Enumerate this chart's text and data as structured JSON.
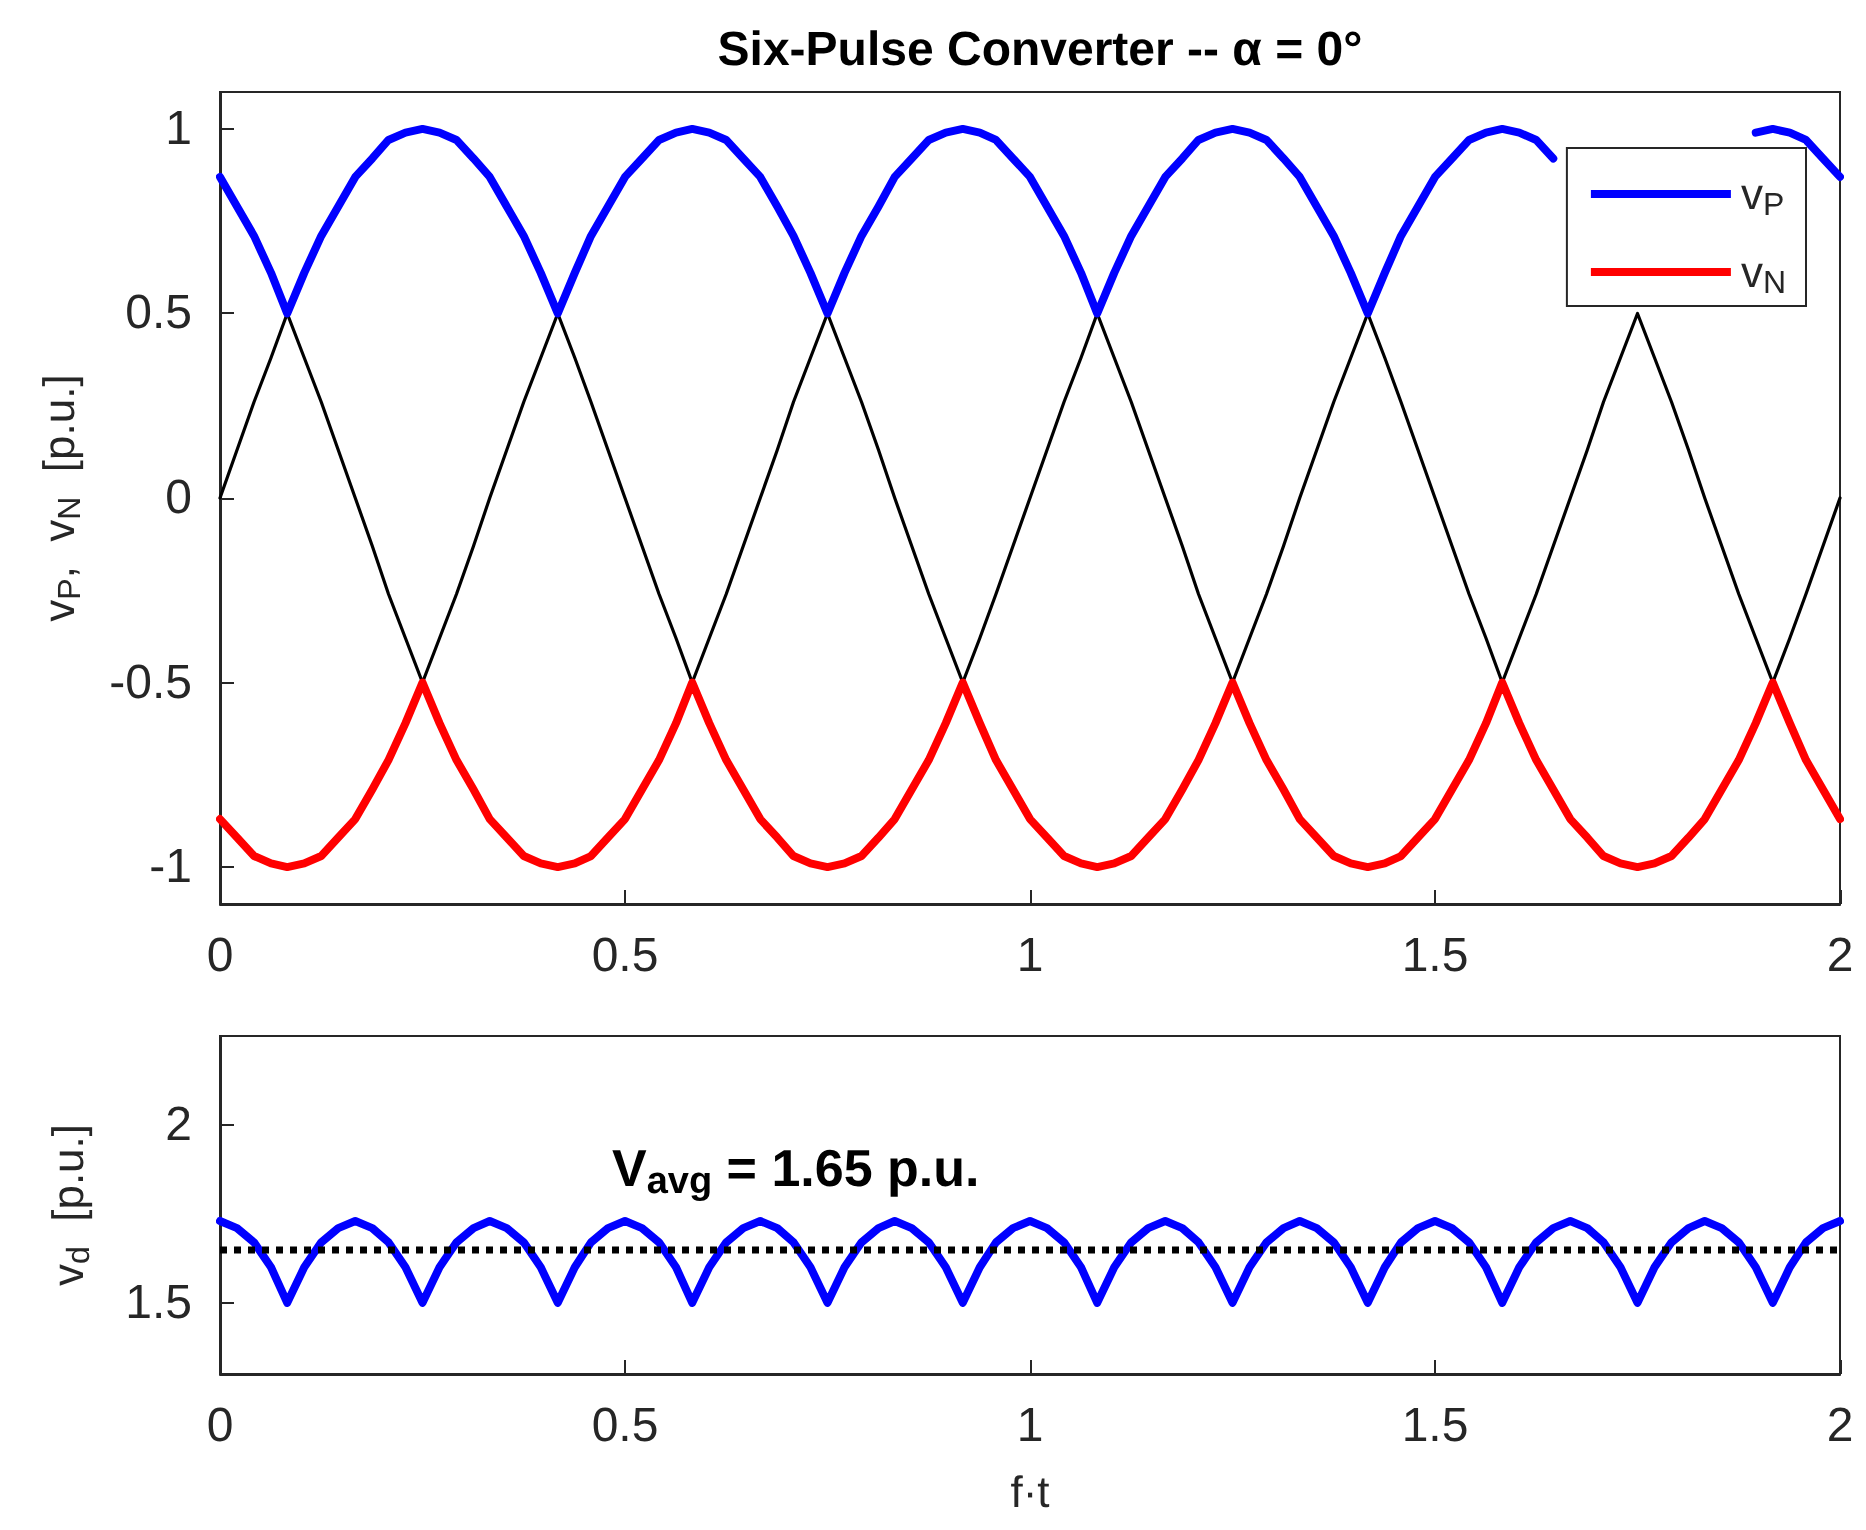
{
  "chart_data": [
    {
      "type": "line",
      "title": "Six-Pulse Converter -- α = 0°",
      "ylabel": "v$_{P}$,  v$_{N}$  [p.u.]",
      "legend": "top right",
      "grid": false,
      "line_style": "solid",
      "marker": "none",
      "x": [
        0,
        0.021,
        0.042,
        0.063,
        0.083,
        0.104,
        0.125,
        0.146,
        0.167,
        0.188,
        0.208,
        0.229,
        0.25,
        0.271,
        0.292,
        0.313,
        0.333,
        0.354,
        0.375,
        0.396,
        0.417,
        0.438,
        0.458,
        0.479,
        0.5,
        0.521,
        0.542,
        0.563,
        0.583,
        0.604,
        0.625,
        0.646,
        0.667,
        0.688,
        0.708,
        0.729,
        0.75,
        0.771,
        0.792,
        0.813,
        0.833,
        0.854,
        0.875,
        0.896,
        0.917,
        0.938,
        0.958,
        0.979,
        1,
        1.021,
        1.042,
        1.063,
        1.083,
        1.104,
        1.125,
        1.146,
        1.167,
        1.188,
        1.208,
        1.229,
        1.25,
        1.271,
        1.292,
        1.313,
        1.333,
        1.354,
        1.375,
        1.396,
        1.417,
        1.438,
        1.458,
        1.479,
        1.5,
        1.521,
        1.542,
        1.563,
        1.583,
        1.604,
        1.625,
        1.646,
        1.667,
        1.688,
        1.708,
        1.729,
        1.75,
        1.771,
        1.792,
        1.813,
        1.833,
        1.854,
        1.875,
        1.896,
        1.917,
        1.938,
        1.958,
        1.979,
        2
      ],
      "xlim": [
        0,
        2
      ],
      "xticks": [
        0,
        0.5,
        1,
        1.5,
        2
      ],
      "ylim": [
        -1.1,
        1.1
      ],
      "yticks": [
        -1,
        -0.5,
        0,
        0.5,
        1
      ],
      "series": [
        {
          "color": "#000000",
          "values": [
            0,
            0.13,
            0.26,
            0.38,
            0.5,
            0.38,
            0.26,
            0.13,
            0,
            -0.13,
            -0.26,
            -0.38,
            -0.5,
            -0.38,
            -0.26,
            -0.13,
            0,
            0.13,
            0.26,
            0.38,
            0.5,
            0.38,
            0.26,
            0.13,
            0,
            -0.13,
            -0.26,
            -0.38,
            -0.5,
            -0.38,
            -0.26,
            -0.13,
            0,
            0.13,
            0.26,
            0.38,
            0.5,
            0.38,
            0.26,
            0.13,
            0,
            -0.13,
            -0.26,
            -0.38,
            -0.5,
            -0.38,
            -0.26,
            -0.13,
            0,
            0.13,
            0.26,
            0.38,
            0.5,
            0.38,
            0.26,
            0.13,
            0,
            -0.13,
            -0.26,
            -0.38,
            -0.5,
            -0.38,
            -0.26,
            -0.13,
            0,
            0.13,
            0.26,
            0.38,
            0.5,
            0.38,
            0.26,
            0.13,
            0,
            -0.13,
            -0.26,
            -0.38,
            -0.5,
            -0.38,
            -0.26,
            -0.13,
            0,
            0.13,
            0.26,
            0.38,
            0.5,
            0.38,
            0.26,
            0.13,
            0,
            -0.13,
            -0.26,
            -0.38,
            -0.5,
            -0.38,
            -0.26,
            -0.13,
            0
          ]
        },
        {
          "name": "v$_{P}$",
          "color": "#0000ff",
          "values": [
            0.87,
            0.79,
            0.71,
            0.61,
            0.5,
            0.61,
            0.71,
            0.79,
            0.87,
            0.92,
            0.97,
            0.99,
            1,
            0.99,
            0.97,
            0.92,
            0.87,
            0.79,
            0.71,
            0.61,
            0.5,
            0.61,
            0.71,
            0.79,
            0.87,
            0.92,
            0.97,
            0.99,
            1,
            0.99,
            0.97,
            0.92,
            0.87,
            0.79,
            0.71,
            0.61,
            0.5,
            0.61,
            0.71,
            0.79,
            0.87,
            0.92,
            0.97,
            0.99,
            1,
            0.99,
            0.97,
            0.92,
            0.87,
            0.79,
            0.71,
            0.61,
            0.5,
            0.61,
            0.71,
            0.79,
            0.87,
            0.92,
            0.97,
            0.99,
            1,
            0.99,
            0.97,
            0.92,
            0.87,
            0.79,
            0.71,
            0.61,
            0.5,
            0.61,
            0.71,
            0.79,
            0.87,
            0.92,
            0.97,
            0.99,
            1,
            0.99,
            0.97,
            0.92,
            null,
            null,
            null,
            null,
            null,
            null,
            null,
            null,
            null,
            null,
            null,
            0.99,
            1,
            0.99,
            0.97,
            0.92,
            0.87
          ]
        },
        {
          "name": "v$_{N}$",
          "color": "#ff0000",
          "values": [
            -0.87,
            -0.92,
            -0.97,
            -0.99,
            -1,
            -0.99,
            -0.97,
            -0.92,
            -0.87,
            -0.79,
            -0.71,
            -0.61,
            -0.5,
            -0.61,
            -0.71,
            -0.79,
            -0.87,
            -0.92,
            -0.97,
            -0.99,
            -1,
            -0.99,
            -0.97,
            -0.92,
            -0.87,
            -0.79,
            -0.71,
            -0.61,
            -0.5,
            -0.61,
            -0.71,
            -0.79,
            -0.87,
            -0.92,
            -0.97,
            -0.99,
            -1,
            -0.99,
            -0.97,
            -0.92,
            -0.87,
            -0.79,
            -0.71,
            -0.61,
            -0.5,
            -0.61,
            -0.71,
            -0.79,
            -0.87,
            -0.92,
            -0.97,
            -0.99,
            -1,
            -0.99,
            -0.97,
            -0.92,
            -0.87,
            -0.79,
            -0.71,
            -0.61,
            -0.5,
            -0.61,
            -0.71,
            -0.79,
            -0.87,
            -0.92,
            -0.97,
            -0.99,
            -1,
            -0.99,
            -0.97,
            -0.92,
            -0.87,
            -0.79,
            -0.71,
            -0.61,
            -0.5,
            -0.61,
            -0.71,
            -0.79,
            -0.87,
            -0.92,
            -0.97,
            -0.99,
            -1,
            -0.99,
            -0.97,
            -0.92,
            -0.87,
            -0.79,
            -0.71,
            -0.61,
            -0.5,
            -0.61,
            -0.71,
            -0.79,
            -0.87
          ]
        }
      ]
    },
    {
      "type": "line",
      "xlabel": "f·t",
      "ylabel": "v$_{d}$  [p.u.]",
      "grid": false,
      "line_style": "solid",
      "marker": "none",
      "x": [
        0,
        0.021,
        0.042,
        0.063,
        0.083,
        0.104,
        0.125,
        0.146,
        0.167,
        0.188,
        0.208,
        0.229,
        0.25,
        0.271,
        0.292,
        0.313,
        0.333,
        0.354,
        0.375,
        0.396,
        0.417,
        0.438,
        0.458,
        0.479,
        0.5,
        0.521,
        0.542,
        0.563,
        0.583,
        0.604,
        0.625,
        0.646,
        0.667,
        0.688,
        0.708,
        0.729,
        0.75,
        0.771,
        0.792,
        0.813,
        0.833,
        0.854,
        0.875,
        0.896,
        0.917,
        0.938,
        0.958,
        0.979,
        1,
        1.021,
        1.042,
        1.063,
        1.083,
        1.104,
        1.125,
        1.146,
        1.167,
        1.188,
        1.208,
        1.229,
        1.25,
        1.271,
        1.292,
        1.313,
        1.333,
        1.354,
        1.375,
        1.396,
        1.417,
        1.438,
        1.458,
        1.479,
        1.5,
        1.521,
        1.542,
        1.563,
        1.583,
        1.604,
        1.625,
        1.646,
        1.667,
        1.688,
        1.708,
        1.729,
        1.75,
        1.771,
        1.792,
        1.813,
        1.833,
        1.854,
        1.875,
        1.896,
        1.917,
        1.938,
        1.958,
        1.979,
        2
      ],
      "xlim": [
        0,
        2
      ],
      "xticks": [
        0,
        0.5,
        1,
        1.5,
        2
      ],
      "ylim": [
        1.3,
        2.25
      ],
      "yticks": [
        1.5,
        2
      ],
      "series": [
        {
          "color": "#0000ff",
          "values": [
            1.73,
            1.71,
            1.67,
            1.6,
            1.5,
            1.6,
            1.67,
            1.71,
            1.73,
            1.71,
            1.67,
            1.6,
            1.5,
            1.6,
            1.67,
            1.71,
            1.73,
            1.71,
            1.67,
            1.6,
            1.5,
            1.6,
            1.67,
            1.71,
            1.73,
            1.71,
            1.67,
            1.6,
            1.5,
            1.6,
            1.67,
            1.71,
            1.73,
            1.71,
            1.67,
            1.6,
            1.5,
            1.6,
            1.67,
            1.71,
            1.73,
            1.71,
            1.67,
            1.6,
            1.5,
            1.6,
            1.67,
            1.71,
            1.73,
            1.71,
            1.67,
            1.6,
            1.5,
            1.6,
            1.67,
            1.71,
            1.73,
            1.71,
            1.67,
            1.6,
            1.5,
            1.6,
            1.67,
            1.71,
            1.73,
            1.71,
            1.67,
            1.6,
            1.5,
            1.6,
            1.67,
            1.71,
            1.73,
            1.71,
            1.67,
            1.6,
            1.5,
            1.6,
            1.67,
            1.71,
            1.73,
            1.71,
            1.67,
            1.6,
            1.5,
            1.6,
            1.67,
            1.71,
            1.73,
            1.71,
            1.67,
            1.6,
            1.5,
            1.6,
            1.67,
            1.71,
            1.73
          ]
        }
      ],
      "ref_lines": [
        {
          "axis": "y",
          "value": 1.65,
          "color": "#000000",
          "line_style": "dotted"
        }
      ],
      "annotations": [
        "V$_{avg}$ = 1.65 p.u."
      ]
    }
  ]
}
